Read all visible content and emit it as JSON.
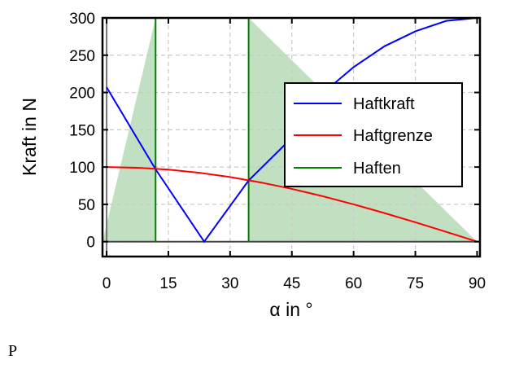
{
  "chart_data": {
    "type": "line",
    "title": "",
    "xlabel": "α in °",
    "ylabel": "Kraft in N",
    "xlim": [
      -1,
      90.7
    ],
    "ylim": [
      -20,
      300
    ],
    "xticks": [
      0,
      15,
      30,
      45,
      60,
      75,
      90
    ],
    "yticks": [
      0,
      50,
      100,
      150,
      200,
      250,
      300
    ],
    "grid": true,
    "legend_position": "center-right",
    "series": [
      {
        "name": "Haftkraft",
        "color": "#0000ff",
        "x": [
          0,
          11.9,
          23.7,
          34.5,
          43.3,
          50,
          55.5,
          60,
          67.5,
          75,
          82.5,
          90
        ],
        "y": [
          207,
          97,
          0,
          82,
          130,
          175,
          213,
          234,
          262,
          282,
          296,
          300
        ]
      },
      {
        "name": "Haftgrenze",
        "color": "#ff0000",
        "x": [
          0,
          7.5,
          15,
          22.5,
          30,
          37.5,
          45,
          52.5,
          60,
          67.5,
          75,
          82.5,
          90
        ],
        "y": [
          100,
          99.1,
          96.6,
          92.4,
          86.6,
          79.3,
          70.7,
          60.9,
          50,
          38.3,
          25.9,
          13.1,
          0
        ]
      },
      {
        "name": "Haften",
        "color": "#008000",
        "vertical_lines_x": [
          11.9,
          34.5
        ],
        "fill_color": "#c1dfc1",
        "fill_regions": [
          [
            [
              -1,
              0
            ],
            [
              11.9,
              300
            ],
            [
              11.9,
              0
            ]
          ],
          [
            [
              34.5,
              0
            ],
            [
              34.5,
              300
            ],
            [
              90,
              0
            ]
          ]
        ]
      }
    ]
  },
  "footer_mark": "P"
}
